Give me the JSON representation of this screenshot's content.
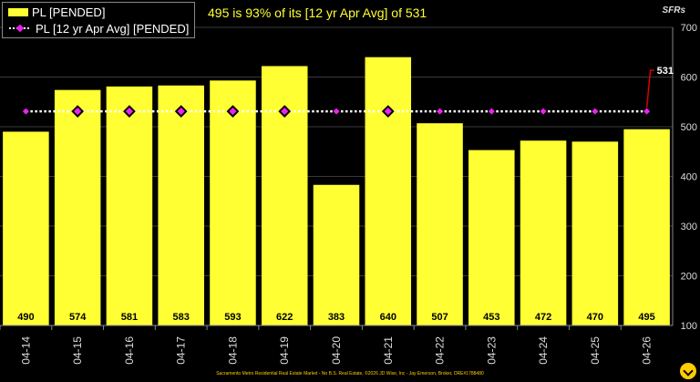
{
  "subtitle": "495 is 93% of its [12 yr Apr Avg] of 531",
  "unit_label": "SFRs",
  "footer": "Sacramento Metro Residential Real Estate Market - No B.S. Real Estate, ©2026 JD Wise, Inc - Jay Emerson, Broker, DRE#1788480",
  "colors": {
    "bar": "#ffff33",
    "avg_marker": "#ee22ee",
    "avg_line": "#ffffff",
    "callout": "#dd0000",
    "background": "#000000",
    "grid": "#3a3a3a"
  },
  "chart_data": {
    "type": "bar",
    "categories": [
      "04-14",
      "04-15",
      "04-16",
      "04-17",
      "04-18",
      "04-19",
      "04-20",
      "04-21",
      "04-22",
      "04-23",
      "04-24",
      "04-25",
      "04-26"
    ],
    "series": [
      {
        "name": "PL [PENDED]",
        "type": "bar",
        "values": [
          490,
          574,
          581,
          583,
          593,
          622,
          383,
          640,
          507,
          453,
          472,
          470,
          495
        ]
      },
      {
        "name": "PL [12 yr Apr Avg] [PENDED]",
        "type": "line",
        "values": [
          531,
          531,
          531,
          531,
          531,
          531,
          531,
          531,
          531,
          531,
          531,
          531,
          531
        ]
      }
    ],
    "highlighted_avg_points": [
      "04-15",
      "04-16",
      "04-17",
      "04-18",
      "04-19",
      "04-21"
    ],
    "callout_value": "531",
    "ylim": [
      100,
      700
    ],
    "yticks": [
      100,
      200,
      300,
      400,
      500,
      600,
      700
    ],
    "grid": true,
    "legend_position": "top-left"
  }
}
